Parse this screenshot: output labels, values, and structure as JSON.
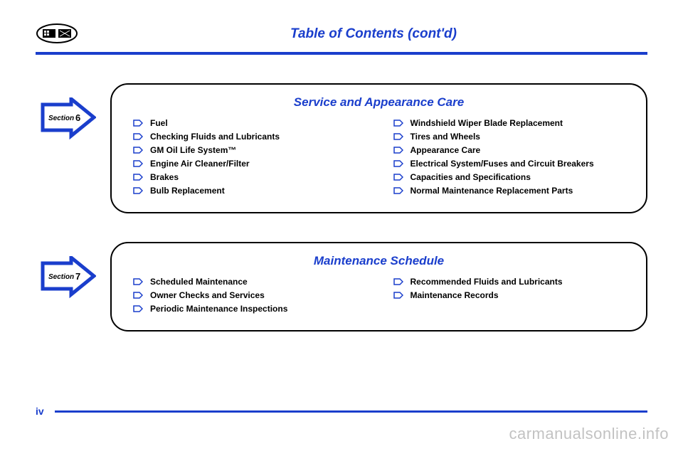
{
  "colors": {
    "primary": "#1a3ecc",
    "black": "#000000",
    "white": "#ffffff",
    "watermark": "rgba(120,120,120,0.45)"
  },
  "header": {
    "title": "Table of Contents (cont'd)"
  },
  "sections": [
    {
      "number": "6",
      "badge_label": "Section",
      "title": "Service and Appearance Care",
      "left_items": [
        "Fuel",
        "Checking Fluids and Lubricants",
        "GM Oil Life System™",
        "Engine Air Cleaner/Filter",
        "Brakes",
        "Bulb Replacement"
      ],
      "right_items": [
        "Windshield Wiper Blade Replacement",
        "Tires and Wheels",
        "Appearance Care",
        "Electrical System/Fuses and Circuit Breakers",
        "Capacities and Specifications",
        "Normal Maintenance Replacement Parts"
      ]
    },
    {
      "number": "7",
      "badge_label": "Section",
      "title": "Maintenance Schedule",
      "left_items": [
        "Scheduled Maintenance",
        "Owner Checks and Services",
        "Periodic Maintenance Inspections"
      ],
      "right_items": [
        "Recommended Fluids and Lubricants",
        "Maintenance Records"
      ]
    }
  ],
  "footer": {
    "page_number": "iv"
  },
  "watermark": "carmanualsonline.info"
}
